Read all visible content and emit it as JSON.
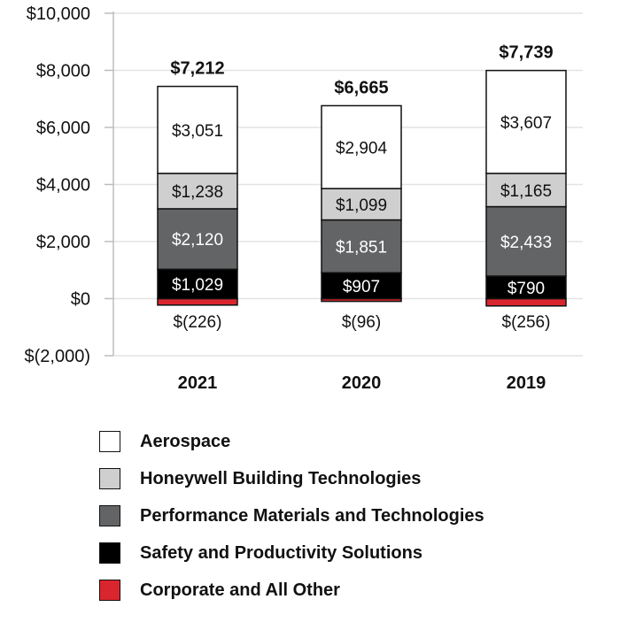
{
  "chart_data": {
    "type": "bar",
    "stacked": true,
    "categories": [
      "2021",
      "2020",
      "2019"
    ],
    "ylim": [
      -2000,
      10000
    ],
    "yticks": [
      -2000,
      0,
      2000,
      4000,
      6000,
      8000,
      10000
    ],
    "ytick_labels": [
      "$(2,000)",
      "$0",
      "$2,000",
      "$4,000",
      "$6,000",
      "$8,000",
      "$10,000"
    ],
    "grid": true,
    "legend_position": "bottom",
    "series": [
      {
        "name": "Corporate and All Other",
        "color": "#d9262e",
        "values": [
          -226,
          -96,
          -256
        ],
        "labels": [
          "$(226)",
          "$(96)",
          "$(256)"
        ]
      },
      {
        "name": "Safety and Productivity Solutions",
        "color": "#000000",
        "values": [
          1029,
          907,
          790
        ],
        "labels": [
          "$1,029",
          "$907",
          "$790"
        ]
      },
      {
        "name": "Performance Materials and Technologies",
        "color": "#636466",
        "values": [
          2120,
          1851,
          2433
        ],
        "labels": [
          "$2,120",
          "$1,851",
          "$2,433"
        ]
      },
      {
        "name": "Honeywell Building Technologies",
        "color": "#cfcfcf",
        "values": [
          1238,
          1099,
          1165
        ],
        "labels": [
          "$1,238",
          "$1,099",
          "$1,165"
        ]
      },
      {
        "name": "Aerospace",
        "color": "#ffffff",
        "values": [
          3051,
          2904,
          3607
        ],
        "labels": [
          "$3,051",
          "$2,904",
          "$3,607"
        ]
      }
    ],
    "totals": [
      7212,
      6665,
      7739
    ],
    "total_labels": [
      "$7,212",
      "$6,665",
      "$7,739"
    ],
    "legend": [
      {
        "name": "Aerospace",
        "color": "#ffffff"
      },
      {
        "name": "Honeywell Building Technologies",
        "color": "#cfcfcf"
      },
      {
        "name": "Performance Materials and Technologies",
        "color": "#636466"
      },
      {
        "name": "Safety and Productivity Solutions",
        "color": "#000000"
      },
      {
        "name": "Corporate and All Other",
        "color": "#d9262e"
      }
    ]
  }
}
